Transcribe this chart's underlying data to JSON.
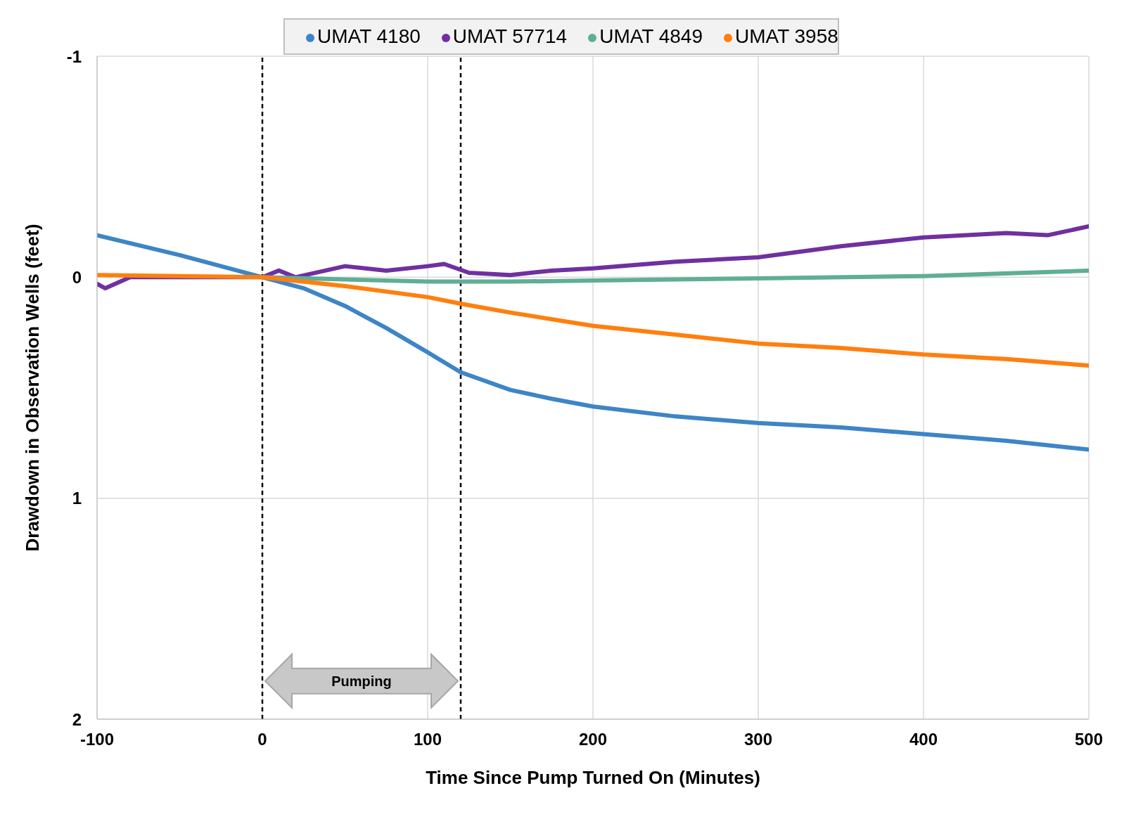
{
  "chart_data": {
    "type": "line",
    "xlabel": "Time Since Pump Turned On (Minutes)",
    "ylabel": "Drawdown in Observation Wells (feet)",
    "xlim": [
      -100,
      500
    ],
    "xticks": [
      -100,
      0,
      100,
      200,
      300,
      400,
      500
    ],
    "ylim": [
      2,
      -1
    ],
    "yticks": [
      -1,
      0,
      1,
      2
    ],
    "grid": true,
    "legend": "top",
    "marker": "none",
    "line_style": "solid",
    "series": [
      {
        "name": "UMAT 4180",
        "color": "#3d85c6",
        "x": [
          -100,
          -50,
          0,
          25,
          50,
          75,
          100,
          120,
          150,
          175,
          200,
          250,
          300,
          350,
          400,
          450,
          500
        ],
        "values": [
          -0.19,
          -0.1,
          0,
          0.05,
          0.13,
          0.23,
          0.34,
          0.43,
          0.51,
          0.55,
          0.585,
          0.63,
          0.66,
          0.68,
          0.71,
          0.74,
          0.78
        ]
      },
      {
        "name": "UMAT 57714",
        "color": "#7030a0",
        "x": [
          -100,
          -95,
          -80,
          -50,
          0,
          10,
          20,
          50,
          75,
          100,
          110,
          125,
          150,
          175,
          200,
          250,
          300,
          350,
          400,
          450,
          475,
          500
        ],
        "values": [
          0.03,
          0.05,
          0,
          0,
          0,
          -0.03,
          0,
          -0.05,
          -0.03,
          -0.05,
          -0.06,
          -0.02,
          -0.01,
          -0.03,
          -0.04,
          -0.07,
          -0.09,
          -0.14,
          -0.18,
          -0.2,
          -0.19,
          -0.23
        ]
      },
      {
        "name": "UMAT 4849",
        "color": "#5fae96",
        "x": [
          0,
          50,
          100,
          150,
          200,
          300,
          400,
          500
        ],
        "values": [
          0,
          0.01,
          0.02,
          0.02,
          0.015,
          0.005,
          -0.005,
          -0.03
        ]
      },
      {
        "name": "UMAT 3958",
        "color": "#ff7f0e",
        "x": [
          -100,
          0,
          50,
          100,
          120,
          150,
          200,
          250,
          300,
          350,
          400,
          450,
          500
        ],
        "values": [
          -0.01,
          0,
          0.04,
          0.09,
          0.12,
          0.16,
          0.22,
          0.26,
          0.3,
          0.32,
          0.35,
          0.37,
          0.4
        ]
      }
    ],
    "ref_lines": [
      {
        "axis": "x",
        "value": 0,
        "color": "#000000",
        "line_style": "dashed"
      },
      {
        "axis": "x",
        "value": 120,
        "color": "#000000",
        "line_style": "dashed"
      }
    ],
    "annotations": [
      "Pumping"
    ]
  }
}
